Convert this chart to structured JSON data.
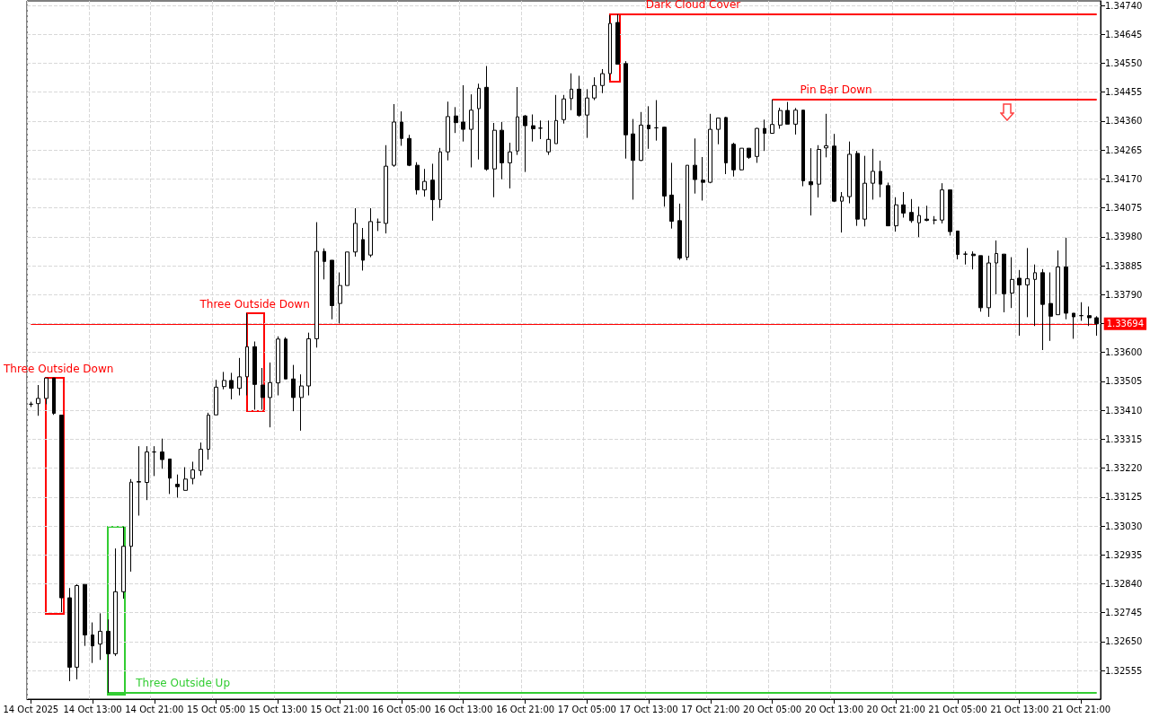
{
  "chart_data": {
    "type": "candlestick",
    "categories": [
      "14 Oct 2025",
      null,
      null,
      null,
      null,
      null,
      null,
      null,
      "14 Oct 13:00",
      null,
      null,
      null,
      null,
      null,
      null,
      null,
      "14 Oct 21:00",
      null,
      null,
      null,
      null,
      null,
      null,
      null,
      "15 Oct 05:00",
      null,
      null,
      null,
      null,
      null,
      null,
      null,
      "15 Oct 13:00",
      null,
      null,
      null,
      null,
      null,
      null,
      null,
      "15 Oct 21:00",
      null,
      null,
      null,
      null,
      null,
      null,
      null,
      "16 Oct 05:00",
      null,
      null,
      null,
      null,
      null,
      null,
      null,
      "16 Oct 13:00",
      null,
      null,
      null,
      null,
      null,
      null,
      null,
      "16 Oct 21:00",
      null,
      null,
      null,
      null,
      null,
      null,
      null,
      "17 Oct 05:00",
      null,
      null,
      null,
      null,
      null,
      null,
      null,
      "17 Oct 13:00",
      null,
      null,
      null,
      null,
      null,
      null,
      null,
      "17 Oct 21:00",
      null,
      null,
      null,
      null,
      null,
      null,
      null,
      "20 Oct 05:00",
      null,
      null,
      null,
      null,
      null,
      null,
      null,
      "20 Oct 13:00",
      null,
      null,
      null,
      null,
      null,
      null,
      null,
      "20 Oct 21:00",
      null,
      null,
      null,
      null,
      null,
      null,
      null,
      "21 Oct 05:00",
      null,
      null,
      null,
      null,
      null,
      null,
      null,
      "21 Oct 13:00",
      null,
      null,
      null,
      null,
      null,
      null,
      null,
      "21 Oct 21:00",
      null,
      null
    ],
    "ohlc": [
      [
        1.3343,
        1.33438,
        1.33421,
        1.3343
      ],
      [
        1.33432,
        1.33493,
        1.33392,
        1.33449
      ],
      [
        1.33449,
        1.33516,
        1.3343,
        1.33516
      ],
      [
        1.33516,
        1.33516,
        1.33395,
        1.334
      ],
      [
        1.33394,
        1.33394,
        1.32747,
        1.32794
      ],
      [
        1.32794,
        1.32826,
        1.3252,
        1.32566
      ],
      [
        1.32566,
        1.32838,
        1.32526,
        1.32834
      ],
      [
        1.32838,
        1.32838,
        1.32636,
        1.32672
      ],
      [
        1.32672,
        1.32713,
        1.3258,
        1.32636
      ],
      [
        1.32642,
        1.32743,
        1.3259,
        1.32684
      ],
      [
        1.32684,
        1.32723,
        1.32482,
        1.3261
      ],
      [
        1.3261,
        1.32956,
        1.32603,
        1.32814
      ],
      [
        1.32814,
        1.33027,
        1.32791,
        1.32963
      ],
      [
        1.32963,
        1.33184,
        1.3288,
        1.33174
      ],
      [
        1.33174,
        1.33292,
        1.33064,
        1.33176
      ],
      [
        1.33173,
        1.33292,
        1.33115,
        1.33273
      ],
      [
        1.33273,
        1.33292,
        1.33194,
        1.33273
      ],
      [
        1.33273,
        1.33317,
        1.33218,
        1.33248
      ],
      [
        1.3325,
        1.3325,
        1.33135,
        1.33187
      ],
      [
        1.33167,
        1.33199,
        1.33123,
        1.33159
      ],
      [
        1.33147,
        1.33223,
        1.33147,
        1.33184
      ],
      [
        1.33186,
        1.33241,
        1.33167,
        1.33214
      ],
      [
        1.33212,
        1.33304,
        1.33196,
        1.33282
      ],
      [
        1.33282,
        1.33402,
        1.33248,
        1.33394
      ],
      [
        1.33395,
        1.3351,
        1.33395,
        1.33486
      ],
      [
        1.33488,
        1.33536,
        1.33479,
        1.33508
      ],
      [
        1.33508,
        1.33533,
        1.33446,
        1.33482
      ],
      [
        1.33482,
        1.33582,
        1.33459,
        1.3352
      ],
      [
        1.3352,
        1.33729,
        1.33459,
        1.33619
      ],
      [
        1.33619,
        1.33636,
        1.33412,
        1.33495
      ],
      [
        1.33493,
        1.33549,
        1.33412,
        1.33452
      ],
      [
        1.33452,
        1.33567,
        1.33354,
        1.33501
      ],
      [
        1.335,
        1.33653,
        1.33459,
        1.33644
      ],
      [
        1.33644,
        1.3365,
        1.33513,
        1.33513
      ],
      [
        1.33513,
        1.33559,
        1.33407,
        1.33452
      ],
      [
        1.33452,
        1.33528,
        1.33343,
        1.3349
      ],
      [
        1.3349,
        1.33665,
        1.33459,
        1.33645
      ],
      [
        1.33645,
        1.34028,
        1.33616,
        1.33932
      ],
      [
        1.33932,
        1.33942,
        1.3384,
        1.33899
      ],
      [
        1.33903,
        1.33903,
        1.33709,
        1.33754
      ],
      [
        1.33761,
        1.33863,
        1.33695,
        1.3382
      ],
      [
        1.3382,
        1.3393,
        1.3382,
        1.3393
      ],
      [
        1.3393,
        1.34074,
        1.33915,
        1.34024
      ],
      [
        1.33971,
        1.34009,
        1.33869,
        1.33903
      ],
      [
        1.3392,
        1.34074,
        1.33913,
        1.3403
      ],
      [
        1.34028,
        1.3404,
        1.33999,
        1.34028
      ],
      [
        1.34024,
        1.34281,
        1.33991,
        1.34212
      ],
      [
        1.34215,
        1.34416,
        1.3421,
        1.34357
      ],
      [
        1.34357,
        1.34392,
        1.34279,
        1.34303
      ],
      [
        1.34303,
        1.34315,
        1.34212,
        1.34215
      ],
      [
        1.34215,
        1.34225,
        1.34119,
        1.34134
      ],
      [
        1.34134,
        1.34203,
        1.34112,
        1.34162
      ],
      [
        1.34166,
        1.3422,
        1.34033,
        1.34102
      ],
      [
        1.34102,
        1.34272,
        1.34075,
        1.34259
      ],
      [
        1.34259,
        1.34424,
        1.34231,
        1.34375
      ],
      [
        1.34377,
        1.34406,
        1.34321,
        1.34355
      ],
      [
        1.34357,
        1.34478,
        1.34293,
        1.34333
      ],
      [
        1.34333,
        1.34448,
        1.34208,
        1.34396
      ],
      [
        1.34401,
        1.34483,
        1.34234,
        1.34468
      ],
      [
        1.34471,
        1.34541,
        1.34197,
        1.34202
      ],
      [
        1.34203,
        1.34354,
        1.3411,
        1.3433
      ],
      [
        1.3433,
        1.34357,
        1.34169,
        1.34223
      ],
      [
        1.34223,
        1.34289,
        1.34139,
        1.34259
      ],
      [
        1.34262,
        1.34472,
        1.34249,
        1.34374
      ],
      [
        1.34377,
        1.3438,
        1.34193,
        1.34345
      ],
      [
        1.34345,
        1.34382,
        1.34293,
        1.34335
      ],
      [
        1.34337,
        1.34362,
        1.34301,
        1.34337
      ],
      [
        1.34259,
        1.34362,
        1.34249,
        1.343
      ],
      [
        1.34286,
        1.34446,
        1.34286,
        1.34362
      ],
      [
        1.34365,
        1.34446,
        1.34352,
        1.34433
      ],
      [
        1.34434,
        1.34517,
        1.34396,
        1.34465
      ],
      [
        1.34465,
        1.34509,
        1.34374,
        1.34379
      ],
      [
        1.3438,
        1.34465,
        1.34305,
        1.34436
      ],
      [
        1.34436,
        1.34504,
        1.34429,
        1.34477
      ],
      [
        1.34477,
        1.34531,
        1.34452,
        1.34516
      ],
      [
        1.34516,
        1.34708,
        1.34495,
        1.34681
      ],
      [
        1.34684,
        1.34711,
        1.34547,
        1.34547
      ],
      [
        1.34549,
        1.34557,
        1.34237,
        1.34315
      ],
      [
        1.34318,
        1.34367,
        1.34102,
        1.34231
      ],
      [
        1.34231,
        1.3439,
        1.34229,
        1.34347
      ],
      [
        1.34347,
        1.34409,
        1.34269,
        1.34335
      ],
      [
        1.34338,
        1.34429,
        1.34296,
        1.34338
      ],
      [
        1.3434,
        1.34342,
        1.34079,
        1.34114
      ],
      [
        1.34117,
        1.34223,
        1.34007,
        1.34031
      ],
      [
        1.34033,
        1.34089,
        1.33904,
        1.3391
      ],
      [
        1.33913,
        1.34215,
        1.33903,
        1.34215
      ],
      [
        1.34215,
        1.34303,
        1.34122,
        1.34168
      ],
      [
        1.34166,
        1.34242,
        1.34099,
        1.34159
      ],
      [
        1.34159,
        1.34384,
        1.34156,
        1.34333
      ],
      [
        1.34333,
        1.3437,
        1.34284,
        1.3437
      ],
      [
        1.34372,
        1.34374,
        1.34186,
        1.34223
      ],
      [
        1.34284,
        1.34289,
        1.34178,
        1.342
      ],
      [
        1.342,
        1.34271,
        1.34198,
        1.34271
      ],
      [
        1.34271,
        1.34271,
        1.34236,
        1.34241
      ],
      [
        1.34244,
        1.34338,
        1.34223,
        1.34336
      ],
      [
        1.34336,
        1.34365,
        1.34262,
        1.3432
      ],
      [
        1.3432,
        1.34431,
        1.3432,
        1.34349
      ],
      [
        1.34347,
        1.34404,
        1.34335,
        1.34395
      ],
      [
        1.34395,
        1.34423,
        1.3435,
        1.3435
      ],
      [
        1.3435,
        1.34403,
        1.34316,
        1.34396
      ],
      [
        1.34396,
        1.34396,
        1.34146,
        1.34164
      ],
      [
        1.34161,
        1.34271,
        1.3405,
        1.34151
      ],
      [
        1.34153,
        1.34281,
        1.34109,
        1.34267
      ],
      [
        1.34272,
        1.34384,
        1.34241,
        1.34279
      ],
      [
        1.34278,
        1.34318,
        1.34094,
        1.34097
      ],
      [
        1.34097,
        1.34127,
        1.33994,
        1.34112
      ],
      [
        1.34112,
        1.34293,
        1.3409,
        1.34251
      ],
      [
        1.34254,
        1.34262,
        1.34016,
        1.34038
      ],
      [
        1.34038,
        1.34246,
        1.34014,
        1.34156
      ],
      [
        1.34156,
        1.34269,
        1.34102,
        1.34195
      ],
      [
        1.34195,
        1.3423,
        1.3411,
        1.34153
      ],
      [
        1.34148,
        1.34158,
        1.34016,
        1.34016
      ],
      [
        1.34016,
        1.3411,
        1.33997,
        1.34085
      ],
      [
        1.34085,
        1.34127,
        1.34043,
        1.34058
      ],
      [
        1.3406,
        1.34104,
        1.34026,
        1.34033
      ],
      [
        1.34026,
        1.34079,
        1.33979,
        1.3405
      ],
      [
        1.34038,
        1.34082,
        1.34031,
        1.34034
      ],
      [
        1.34035,
        1.34048,
        1.34021,
        1.34035
      ],
      [
        1.34035,
        1.34156,
        1.34024,
        1.34134
      ],
      [
        1.34134,
        1.34134,
        1.33984,
        1.33997
      ],
      [
        1.33999,
        1.33999,
        1.33906,
        1.33922
      ],
      [
        1.33923,
        1.33932,
        1.33889,
        1.33923
      ],
      [
        1.33923,
        1.33932,
        1.33873,
        1.33918
      ],
      [
        1.33918,
        1.33918,
        1.33734,
        1.33747
      ],
      [
        1.33747,
        1.33918,
        1.33717,
        1.33894
      ],
      [
        1.33894,
        1.33968,
        1.33791,
        1.33925
      ],
      [
        1.33923,
        1.33923,
        1.33732,
        1.33793
      ],
      [
        1.33795,
        1.33913,
        1.33746,
        1.3384
      ],
      [
        1.33844,
        1.33871,
        1.33655,
        1.33822
      ],
      [
        1.33822,
        1.33943,
        1.33716,
        1.33842
      ],
      [
        1.3384,
        1.33889,
        1.33687,
        1.33862
      ],
      [
        1.33862,
        1.33874,
        1.33608,
        1.33758
      ],
      [
        1.33761,
        1.33863,
        1.33638,
        1.33719
      ],
      [
        1.33724,
        1.33935,
        1.33724,
        1.33881
      ],
      [
        1.33881,
        1.33977,
        1.33709,
        1.33729
      ],
      [
        1.33729,
        1.33729,
        1.33645,
        1.33717
      ],
      [
        1.33721,
        1.33765,
        1.33704,
        1.33721
      ],
      [
        1.33721,
        1.33751,
        1.33687,
        1.33714
      ],
      [
        1.33714,
        1.33719,
        1.33655,
        1.33694
      ]
    ],
    "ylim": [
      1.32461,
      1.34755
    ],
    "yticks": [
      1.32555,
      {
        "value": 1.3265,
        "label": "1.32650"
      },
      1.32745,
      {
        "value": 1.3284,
        "label": "1.32840"
      },
      1.32935,
      {
        "value": 1.3303,
        "label": "1.33030"
      },
      1.33125,
      {
        "value": 1.3322,
        "label": "1.33220"
      },
      1.33315,
      {
        "value": 1.3341,
        "label": "1.33410"
      },
      1.33505,
      {
        "value": 1.336,
        "label": "1.33600"
      },
      {
        "value": 1.33695,
        "label": null
      },
      {
        "value": 1.3379,
        "label": "1.33790"
      },
      1.33885,
      {
        "value": 1.3398,
        "label": "1.33980"
      },
      1.34075,
      {
        "value": 1.3417,
        "label": "1.34170"
      },
      1.34265,
      {
        "value": 1.3436,
        "label": "1.34360"
      },
      1.34455,
      {
        "value": 1.3455,
        "label": "1.34550"
      },
      1.34645,
      {
        "value": 1.3474,
        "label": "1.34740"
      }
    ],
    "grid": true,
    "ref_lines": [
      {
        "axis": "y",
        "value": 1.34711,
        "label": "Dark Cloud Cover",
        "color": "#ff0000"
      },
      {
        "axis": "y",
        "value": 1.34431,
        "label": "Pin Bar Down",
        "color": "#ff0000"
      },
      {
        "axis": "y",
        "value": 1.32482,
        "label": "Three Outside Up",
        "color": "#32cd32"
      },
      {
        "axis": "y",
        "value": 1.33694,
        "label": "1.33694",
        "color": "#ff0000"
      }
    ],
    "annotations": [
      "Three Outside Down",
      "Three Outside Down"
    ]
  }
}
